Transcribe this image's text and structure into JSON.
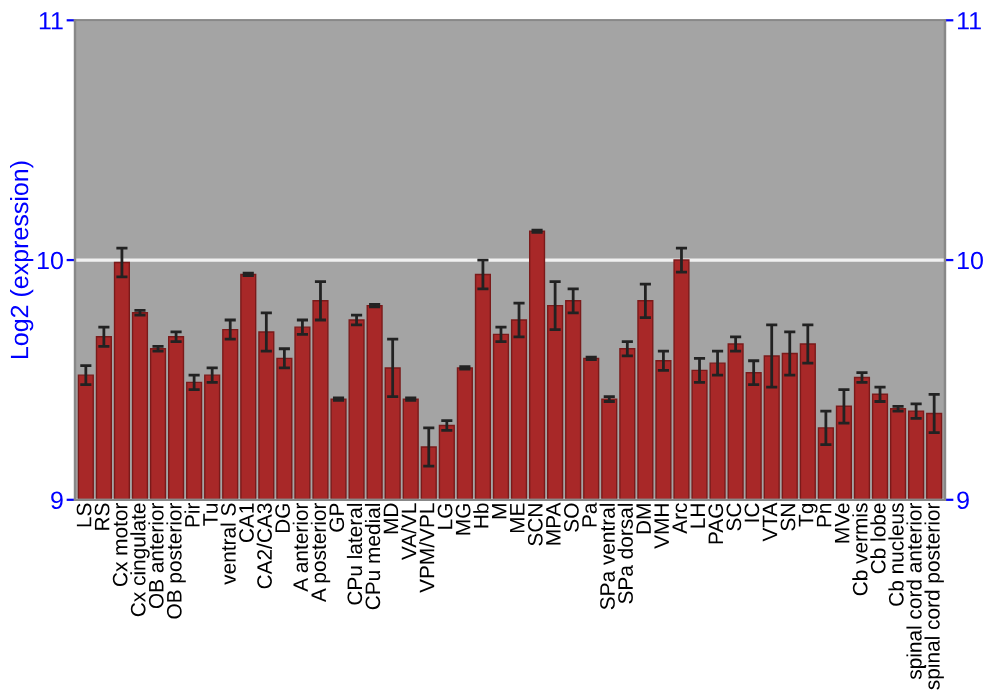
{
  "chart_data": {
    "type": "bar",
    "ylabel": "Log2 (expression)",
    "categories": [
      "LS",
      "RS",
      "Cx motor",
      "Cx cingulate",
      "OB anterior",
      "OB posterior",
      "Pir",
      "Tu",
      "ventral S",
      "CA1",
      "CA2/CA3",
      "DG",
      "A anterior",
      "A posterior",
      "GP",
      "CPu lateral",
      "CPu medial",
      "MD",
      "VA/VL",
      "VPM/VPL",
      "LG",
      "MG",
      "Hb",
      "M",
      "ME",
      "SCN",
      "MPA",
      "SO",
      "Pa",
      "SPa ventral",
      "SPa dorsal",
      "DM",
      "VMH",
      "Arc",
      "LH",
      "PAG",
      "SC",
      "IC",
      "VTA",
      "SN",
      "Tg",
      "Pn",
      "MVe",
      "Cb vermis",
      "Cb lobe",
      "Cb nucleus",
      "spinal cord anterior",
      "spinal cord posterior"
    ],
    "values": [
      9.52,
      9.68,
      9.99,
      9.78,
      9.63,
      9.68,
      9.49,
      9.52,
      9.71,
      9.94,
      9.7,
      9.59,
      9.72,
      9.83,
      9.42,
      9.75,
      9.81,
      9.55,
      9.42,
      9.22,
      9.31,
      9.55,
      9.94,
      9.69,
      9.75,
      10.12,
      9.81,
      9.83,
      9.59,
      9.42,
      9.63,
      9.83,
      9.58,
      10.0,
      9.54,
      9.57,
      9.65,
      9.53,
      9.6,
      9.61,
      9.65,
      9.3,
      9.39,
      9.51,
      9.44,
      9.38,
      9.37,
      9.36
    ],
    "errors": [
      0.04,
      0.04,
      0.06,
      0.01,
      0.01,
      0.02,
      0.03,
      0.03,
      0.04,
      0.005,
      0.08,
      0.04,
      0.03,
      0.08,
      0.005,
      0.02,
      0.005,
      0.12,
      0.005,
      0.08,
      0.02,
      0.005,
      0.06,
      0.03,
      0.07,
      0.005,
      0.1,
      0.05,
      0.005,
      0.01,
      0.03,
      0.07,
      0.04,
      0.05,
      0.05,
      0.05,
      0.03,
      0.05,
      0.13,
      0.09,
      0.08,
      0.07,
      0.07,
      0.02,
      0.03,
      0.01,
      0.03,
      0.08
    ],
    "color": "#a82828",
    "ylim": [
      9,
      11
    ],
    "yticks": [
      9,
      10,
      11
    ],
    "y2lim": [
      9,
      11
    ],
    "y2ticks": [
      9,
      10,
      11
    ],
    "grid": "y",
    "legend": false
  }
}
